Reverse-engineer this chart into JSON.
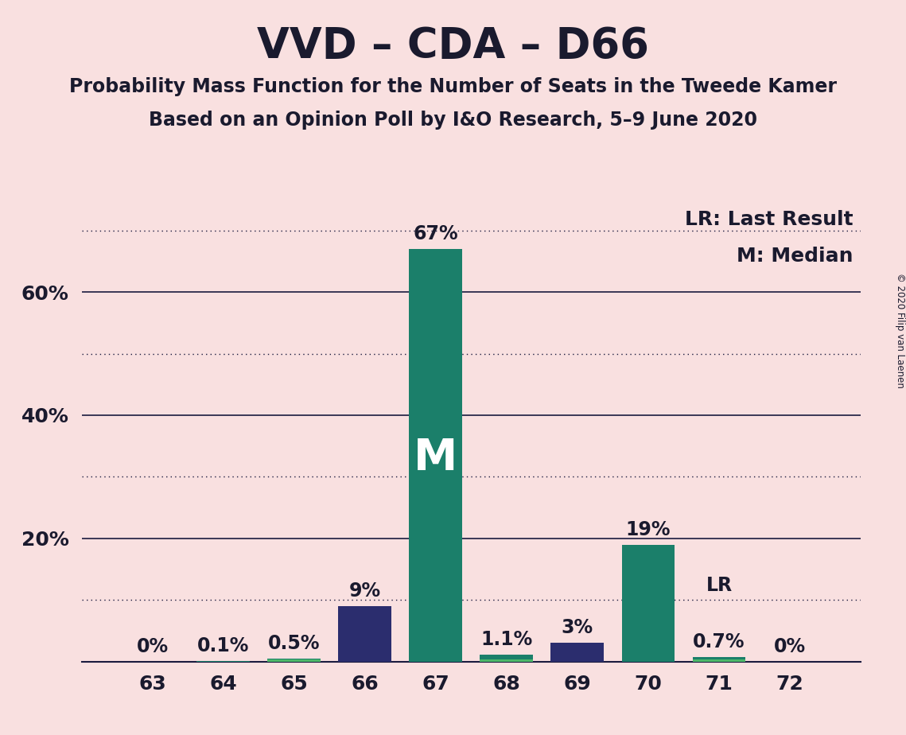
{
  "title": "VVD – CDA – D66",
  "subtitle1": "Probability Mass Function for the Number of Seats in the Tweede Kamer",
  "subtitle2": "Based on an Opinion Poll by I&O Research, 5–9 June 2020",
  "copyright": "© 2020 Filip van Laenen",
  "categories": [
    63,
    64,
    65,
    66,
    67,
    68,
    69,
    70,
    71,
    72
  ],
  "values": [
    0.0,
    0.1,
    0.5,
    9.0,
    67.0,
    1.1,
    3.0,
    19.0,
    0.7,
    0.0
  ],
  "labels": [
    "0%",
    "0.1%",
    "0.5%",
    "9%",
    "67%",
    "1.1%",
    "3%",
    "19%",
    "0.7%",
    "0%"
  ],
  "median_bar": 67,
  "last_result_bar": 71,
  "lr_text": "LR: Last Result",
  "m_text": "M: Median",
  "background_color": "#F9E0E0",
  "bar_width": 0.75,
  "xlim": [
    62.0,
    73.0
  ],
  "ylim": [
    0,
    74
  ],
  "solid_gridlines": [
    20,
    40,
    60
  ],
  "dotted_gridlines": [
    10,
    30,
    50,
    70
  ],
  "title_fontsize": 38,
  "subtitle_fontsize": 17,
  "label_fontsize": 17,
  "tick_fontsize": 18,
  "legend_fontsize": 18,
  "teal_color": "#1B7F6A",
  "dark_blue_color": "#2B2D6E",
  "bright_green_color": "#4DB86A",
  "grid_color": "#1A1A3E",
  "text_color": "#1A1A2E"
}
